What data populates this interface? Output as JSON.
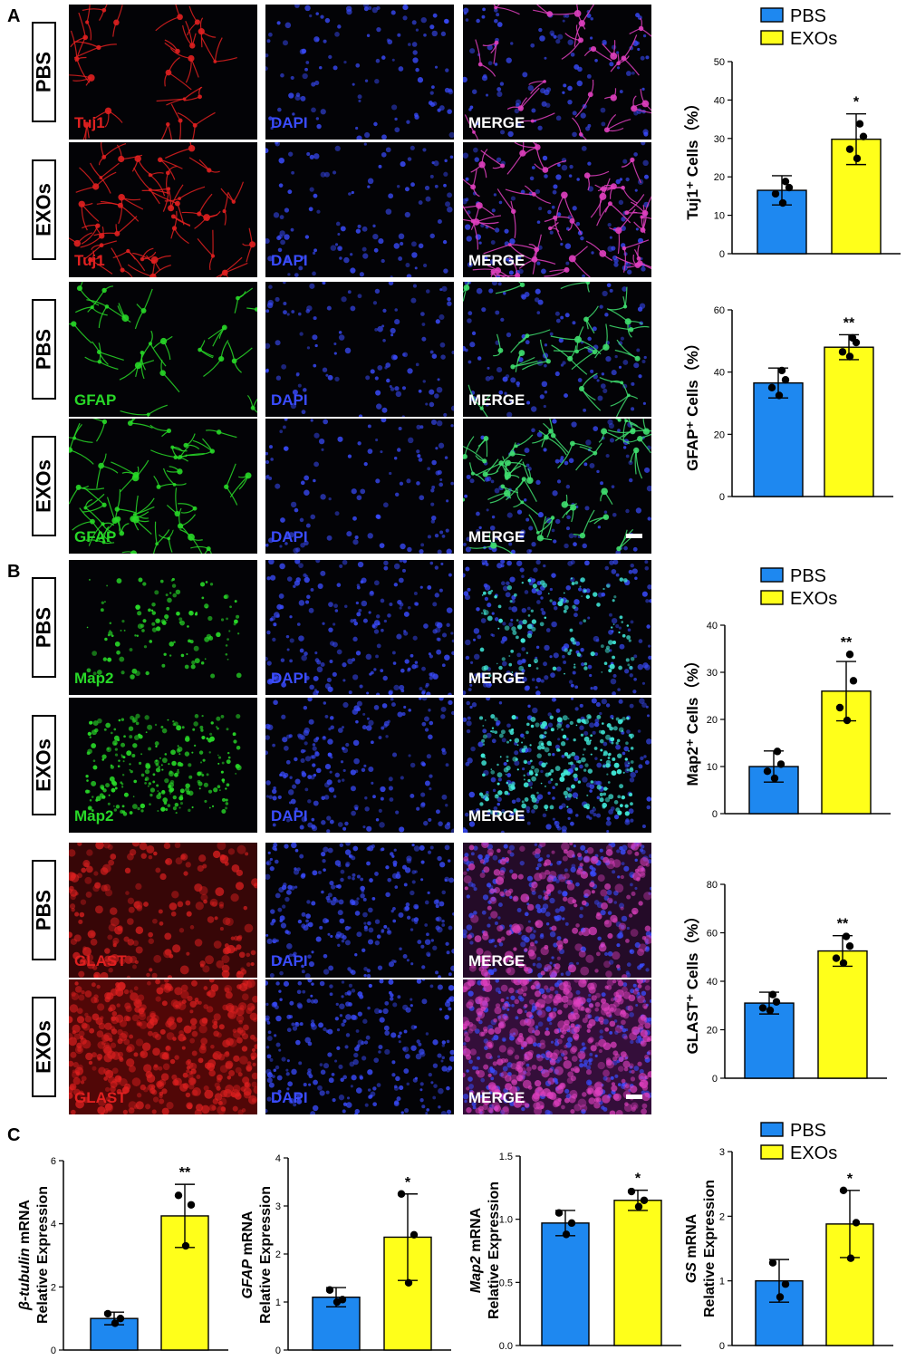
{
  "panels": [
    {
      "letter": "A",
      "label_key": "A"
    },
    {
      "letter": "B",
      "label_key": "B"
    },
    {
      "letter": "C",
      "label_key": "C"
    }
  ],
  "image_grid": {
    "columns": [
      "marker",
      "DAPI",
      "MERGE"
    ],
    "rows": [
      {
        "group": "PBS",
        "marker": "Tuj1",
        "dapi": "DAPI",
        "merge": "MERGE",
        "tone": "red",
        "scalebar": false
      },
      {
        "group": "EXOs",
        "marker": "Tuj1",
        "dapi": "DAPI",
        "merge": "MERGE",
        "tone": "red",
        "scalebar": false
      },
      {
        "group": "PBS",
        "marker": "GFAP",
        "dapi": "DAPI",
        "merge": "MERGE",
        "tone": "green",
        "scalebar": false
      },
      {
        "group": "EXOs",
        "marker": "GFAP",
        "dapi": "DAPI",
        "merge": "MERGE",
        "tone": "green",
        "scalebar": true
      },
      {
        "group": "PBS",
        "marker": "Map2",
        "dapi": "DAPI",
        "merge": "MERGE",
        "tone": "green",
        "scalebar": false
      },
      {
        "group": "EXOs",
        "marker": "Map2",
        "dapi": "DAPI",
        "merge": "MERGE",
        "tone": "green",
        "scalebar": false
      },
      {
        "group": "PBS",
        "marker": "GLAST",
        "dapi": "DAPI",
        "merge": "MERGE",
        "tone": "red",
        "scalebar": false
      },
      {
        "group": "EXOs",
        "marker": "GLAST",
        "dapi": "DAPI",
        "merge": "MERGE",
        "tone": "red",
        "scalebar": true
      }
    ]
  },
  "legend": {
    "items": [
      "PBS",
      "EXOs"
    ]
  },
  "colors": {
    "PBS": "#1e88f0",
    "EXOs": "#ffff1a",
    "red": "#e02020",
    "green": "#28d828",
    "blue": "#3a4cff"
  },
  "chart_data": [
    {
      "type": "bar",
      "ylabel": "Tuj1⁺ Cells（%）",
      "categories": [
        "PBS",
        "EXOs"
      ],
      "values": [
        16.5,
        29.8
      ],
      "errors": [
        3.8,
        6.6
      ],
      "points": [
        [
          18.8,
          17.2,
          15.6,
          13.2
        ],
        [
          33.8,
          30.5,
          27.2,
          24.8
        ]
      ],
      "sig": "*",
      "ylim": [
        0,
        50
      ],
      "ticks": [
        0,
        10,
        20,
        30,
        40,
        50
      ]
    },
    {
      "type": "bar",
      "ylabel": "GFAP⁺ Cells（%）",
      "categories": [
        "PBS",
        "EXOs"
      ],
      "values": [
        36.5,
        48.0
      ],
      "errors": [
        4.8,
        4.0
      ],
      "points": [
        [
          40.5,
          37.5,
          35.0,
          32.5
        ],
        [
          51.0,
          49.5,
          46.5,
          45.0
        ]
      ],
      "sig": "**",
      "ylim": [
        0,
        60
      ],
      "ticks": [
        0,
        20,
        40,
        60
      ]
    },
    {
      "type": "bar",
      "ylabel": "Map2⁺ Cells（%）",
      "categories": [
        "PBS",
        "EXOs"
      ],
      "values": [
        10.0,
        26.0
      ],
      "errors": [
        3.3,
        6.3
      ],
      "points": [
        [
          13.2,
          10.5,
          9.0,
          7.5
        ],
        [
          33.8,
          28.2,
          22.5,
          19.8
        ]
      ],
      "sig": "**",
      "ylim": [
        0,
        40
      ],
      "ticks": [
        0,
        10,
        20,
        30,
        40
      ]
    },
    {
      "type": "bar",
      "ylabel": "GLAST⁺ Cells（%）",
      "categories": [
        "PBS",
        "EXOs"
      ],
      "values": [
        31.0,
        52.5
      ],
      "errors": [
        4.5,
        6.3
      ],
      "points": [
        [
          34.5,
          31.5,
          29.0,
          28.0
        ],
        [
          58.5,
          54.5,
          49.5,
          47.5
        ]
      ],
      "sig": "**",
      "ylim": [
        0,
        80
      ],
      "ticks": [
        0,
        20,
        40,
        60,
        80
      ]
    },
    {
      "type": "bar",
      "ylabel_gene": "β-tubulin",
      "ylabel_rest": " mRNA",
      "ylabel2": "Relative Expression",
      "categories": [
        "PBS",
        "EXOs"
      ],
      "values": [
        1.0,
        4.25
      ],
      "errors": [
        0.2,
        1.0
      ],
      "points": [
        [
          1.15,
          1.0,
          0.85
        ],
        [
          4.9,
          4.6,
          3.3
        ]
      ],
      "sig": "**",
      "ylim": [
        0,
        6
      ],
      "ticks": [
        0,
        2,
        4,
        6
      ]
    },
    {
      "type": "bar",
      "ylabel_gene": "GFAP",
      "ylabel_rest": " mRNA",
      "ylabel2": "Relative Expression",
      "categories": [
        "PBS",
        "EXOs"
      ],
      "values": [
        1.1,
        2.35
      ],
      "errors": [
        0.2,
        0.9
      ],
      "points": [
        [
          1.25,
          1.05,
          1.0
        ],
        [
          3.25,
          2.4,
          1.4
        ]
      ],
      "sig": "*",
      "ylim": [
        0,
        4
      ],
      "ticks": [
        0,
        1,
        2,
        3,
        4
      ]
    },
    {
      "type": "bar",
      "ylabel_gene": "Map2",
      "ylabel_rest": " mRNA",
      "ylabel2": "Relative Expression",
      "categories": [
        "PBS",
        "EXOs"
      ],
      "values": [
        0.97,
        1.15
      ],
      "errors": [
        0.1,
        0.08
      ],
      "points": [
        [
          1.05,
          0.97,
          0.88
        ],
        [
          1.22,
          1.15,
          1.1
        ]
      ],
      "sig": "*",
      "ylim": [
        0,
        1.5
      ],
      "ticks": [
        0.0,
        0.5,
        1.0,
        1.5
      ]
    },
    {
      "type": "bar",
      "ylabel_gene": "GS",
      "ylabel_rest": " mRNA",
      "ylabel2": "Relative Expression",
      "categories": [
        "PBS",
        "EXOs"
      ],
      "values": [
        1.0,
        1.88
      ],
      "errors": [
        0.33,
        0.52
      ],
      "points": [
        [
          1.28,
          0.95,
          0.75
        ],
        [
          2.4,
          1.9,
          1.35
        ]
      ],
      "sig": "*",
      "ylim": [
        0,
        3
      ],
      "ticks": [
        0,
        1,
        2,
        3
      ]
    }
  ]
}
